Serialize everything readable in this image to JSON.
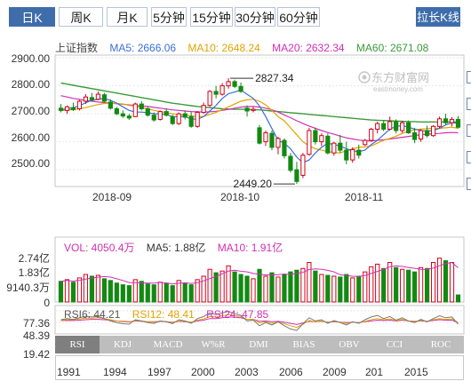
{
  "tabs": [
    {
      "label": "日K",
      "active": true
    },
    {
      "label": "周K",
      "active": false
    },
    {
      "label": "月K",
      "active": false
    },
    {
      "label": "5分钟",
      "active": false
    },
    {
      "label": "15分钟",
      "active": false
    },
    {
      "label": "30分钟",
      "active": false
    },
    {
      "label": "60分钟",
      "active": false
    }
  ],
  "long_chart_button": "拉长K线",
  "legend": {
    "index_name": "上证指数",
    "ma5": "MA5: 2666.06",
    "ma10": "MA10: 2648.24",
    "ma20": "MA20: 2632.34",
    "ma60": "MA60: 2671.08"
  },
  "colors": {
    "accent": "#3f6dab",
    "up": "#d0021b",
    "down": "#128a12",
    "ma5": "#3a6fd8",
    "ma10": "#e0a300",
    "ma20": "#d12fb4",
    "ma60": "#3a9b3a"
  },
  "price_axis": [
    "2900.00",
    "2800.00",
    "2700.00",
    "2600.00",
    "2500.00"
  ],
  "date_axis": [
    "2018-09",
    "2018-10",
    "2018-11"
  ],
  "annotations": {
    "high": "2827.34",
    "low": "2449.20"
  },
  "watermark": {
    "name": "东方财富网",
    "url": "eastmoney.com"
  },
  "volume": {
    "vol": "VOL: 4050.4万",
    "ma5": "MA5: 1.88亿",
    "ma10": "MA10: 1.91亿",
    "axis": [
      "2.74亿",
      "1.83亿",
      "9140.3万",
      "0"
    ]
  },
  "rsi": {
    "rsi6": "RSI6: 44.21",
    "rsi12": "RSI12: 48.41",
    "rsi24": "RSI24: 47.85",
    "axis": [
      "77.36",
      "48.39",
      "19.42"
    ]
  },
  "indicators": [
    {
      "label": "RSI",
      "active": true
    },
    {
      "label": "KDJ",
      "active": false
    },
    {
      "label": "MACD",
      "active": false
    },
    {
      "label": "W%R",
      "active": false
    },
    {
      "label": "DMI",
      "active": false
    },
    {
      "label": "BIAS",
      "active": false
    },
    {
      "label": "OBV",
      "active": false
    },
    {
      "label": "CCI",
      "active": false
    },
    {
      "label": "ROC",
      "active": false
    }
  ],
  "navigator_years": [
    "1991",
    "1994",
    "1997",
    "2000",
    "2003",
    "2006",
    "2009",
    "201",
    "2015"
  ],
  "chart_data": {
    "type": "candlestick",
    "title": "上证指数",
    "ylim": [
      2440,
      2910
    ],
    "x_ticks": [
      "2018-09",
      "2018-10",
      "2018-11"
    ],
    "candles": [
      {
        "o": 2720,
        "h": 2735,
        "l": 2705,
        "c": 2712
      },
      {
        "o": 2712,
        "h": 2730,
        "l": 2700,
        "c": 2725
      },
      {
        "o": 2722,
        "h": 2740,
        "l": 2710,
        "c": 2715
      },
      {
        "o": 2718,
        "h": 2750,
        "l": 2712,
        "c": 2745
      },
      {
        "o": 2745,
        "h": 2770,
        "l": 2735,
        "c": 2760
      },
      {
        "o": 2758,
        "h": 2775,
        "l": 2745,
        "c": 2750
      },
      {
        "o": 2752,
        "h": 2780,
        "l": 2748,
        "c": 2770
      },
      {
        "o": 2768,
        "h": 2775,
        "l": 2740,
        "c": 2745
      },
      {
        "o": 2742,
        "h": 2752,
        "l": 2715,
        "c": 2720
      },
      {
        "o": 2718,
        "h": 2725,
        "l": 2695,
        "c": 2700
      },
      {
        "o": 2700,
        "h": 2712,
        "l": 2685,
        "c": 2692
      },
      {
        "o": 2692,
        "h": 2700,
        "l": 2678,
        "c": 2685
      },
      {
        "o": 2690,
        "h": 2740,
        "l": 2688,
        "c": 2735
      },
      {
        "o": 2735,
        "h": 2745,
        "l": 2712,
        "c": 2718
      },
      {
        "o": 2718,
        "h": 2725,
        "l": 2690,
        "c": 2695
      },
      {
        "o": 2695,
        "h": 2705,
        "l": 2672,
        "c": 2678
      },
      {
        "o": 2680,
        "h": 2712,
        "l": 2676,
        "c": 2708
      },
      {
        "o": 2708,
        "h": 2720,
        "l": 2690,
        "c": 2695
      },
      {
        "o": 2690,
        "h": 2696,
        "l": 2660,
        "c": 2665
      },
      {
        "o": 2665,
        "h": 2705,
        "l": 2660,
        "c": 2700
      },
      {
        "o": 2700,
        "h": 2712,
        "l": 2680,
        "c": 2688
      },
      {
        "o": 2690,
        "h": 2706,
        "l": 2650,
        "c": 2655
      },
      {
        "o": 2655,
        "h": 2710,
        "l": 2650,
        "c": 2705
      },
      {
        "o": 2705,
        "h": 2740,
        "l": 2700,
        "c": 2730
      },
      {
        "o": 2730,
        "h": 2785,
        "l": 2725,
        "c": 2780
      },
      {
        "o": 2780,
        "h": 2800,
        "l": 2755,
        "c": 2770
      },
      {
        "o": 2770,
        "h": 2810,
        "l": 2765,
        "c": 2800
      },
      {
        "o": 2800,
        "h": 2827,
        "l": 2790,
        "c": 2815
      },
      {
        "o": 2815,
        "h": 2822,
        "l": 2792,
        "c": 2798
      },
      {
        "o": 2798,
        "h": 2812,
        "l": 2775,
        "c": 2780
      },
      {
        "o": 2720,
        "h": 2730,
        "l": 2690,
        "c": 2710
      },
      {
        "o": 2712,
        "h": 2725,
        "l": 2705,
        "c": 2716
      },
      {
        "o": 2650,
        "h": 2660,
        "l": 2590,
        "c": 2595
      },
      {
        "o": 2600,
        "h": 2640,
        "l": 2585,
        "c": 2632
      },
      {
        "o": 2630,
        "h": 2640,
        "l": 2570,
        "c": 2580
      },
      {
        "o": 2580,
        "h": 2618,
        "l": 2555,
        "c": 2612
      },
      {
        "o": 2605,
        "h": 2612,
        "l": 2540,
        "c": 2550
      },
      {
        "o": 2548,
        "h": 2560,
        "l": 2490,
        "c": 2498
      },
      {
        "o": 2500,
        "h": 2528,
        "l": 2449,
        "c": 2458
      },
      {
        "o": 2480,
        "h": 2560,
        "l": 2470,
        "c": 2552
      },
      {
        "o": 2555,
        "h": 2650,
        "l": 2550,
        "c": 2640
      },
      {
        "o": 2640,
        "h": 2650,
        "l": 2590,
        "c": 2600
      },
      {
        "o": 2600,
        "h": 2630,
        "l": 2585,
        "c": 2622
      },
      {
        "o": 2620,
        "h": 2630,
        "l": 2555,
        "c": 2560
      },
      {
        "o": 2560,
        "h": 2600,
        "l": 2550,
        "c": 2595
      },
      {
        "o": 2595,
        "h": 2625,
        "l": 2560,
        "c": 2570
      },
      {
        "o": 2570,
        "h": 2600,
        "l": 2520,
        "c": 2535
      },
      {
        "o": 2535,
        "h": 2580,
        "l": 2525,
        "c": 2572
      },
      {
        "o": 2570,
        "h": 2590,
        "l": 2540,
        "c": 2552
      },
      {
        "o": 2590,
        "h": 2610,
        "l": 2585,
        "c": 2605
      },
      {
        "o": 2605,
        "h": 2650,
        "l": 2600,
        "c": 2645
      },
      {
        "o": 2645,
        "h": 2672,
        "l": 2630,
        "c": 2665
      },
      {
        "o": 2665,
        "h": 2678,
        "l": 2638,
        "c": 2645
      },
      {
        "o": 2645,
        "h": 2690,
        "l": 2640,
        "c": 2672
      },
      {
        "o": 2672,
        "h": 2680,
        "l": 2630,
        "c": 2640
      },
      {
        "o": 2640,
        "h": 2675,
        "l": 2632,
        "c": 2668
      },
      {
        "o": 2668,
        "h": 2676,
        "l": 2628,
        "c": 2632
      },
      {
        "o": 2632,
        "h": 2650,
        "l": 2595,
        "c": 2608
      },
      {
        "o": 2610,
        "h": 2645,
        "l": 2600,
        "c": 2640
      },
      {
        "o": 2640,
        "h": 2658,
        "l": 2615,
        "c": 2622
      },
      {
        "o": 2622,
        "h": 2660,
        "l": 2618,
        "c": 2655
      },
      {
        "o": 2655,
        "h": 2690,
        "l": 2648,
        "c": 2682
      },
      {
        "o": 2682,
        "h": 2700,
        "l": 2660,
        "c": 2668
      },
      {
        "o": 2668,
        "h": 2688,
        "l": 2655,
        "c": 2680
      },
      {
        "o": 2680,
        "h": 2692,
        "l": 2648,
        "c": 2652
      }
    ],
    "ma5": [
      2715,
      2718,
      2722,
      2728,
      2740,
      2748,
      2752,
      2755,
      2748,
      2738,
      2725,
      2712,
      2706,
      2706,
      2704,
      2700,
      2700,
      2697,
      2690,
      2690,
      2690,
      2682,
      2680,
      2690,
      2710,
      2730,
      2755,
      2772,
      2778,
      2785,
      2770,
      2755,
      2728,
      2690,
      2647,
      2605,
      2595,
      2575,
      2545,
      2525,
      2535,
      2560,
      2580,
      2595,
      2590,
      2585,
      2575,
      2567,
      2565,
      2570,
      2590,
      2605,
      2625,
      2645,
      2655,
      2658,
      2652,
      2645,
      2640,
      2638,
      2640,
      2648,
      2660,
      2668,
      2666
    ],
    "ma10": [
      2712,
      2713,
      2715,
      2718,
      2722,
      2728,
      2733,
      2737,
      2738,
      2737,
      2735,
      2730,
      2727,
      2722,
      2718,
      2712,
      2708,
      2704,
      2700,
      2697,
      2696,
      2692,
      2690,
      2691,
      2698,
      2705,
      2715,
      2725,
      2735,
      2745,
      2750,
      2752,
      2745,
      2732,
      2712,
      2690,
      2675,
      2650,
      2625,
      2600,
      2585,
      2575,
      2570,
      2565,
      2562,
      2560,
      2568,
      2575,
      2580,
      2582,
      2585,
      2595,
      2605,
      2612,
      2620,
      2630,
      2638,
      2643,
      2645,
      2647,
      2648,
      2648,
      2650,
      2652,
      2648
    ],
    "ma20": [
      2765,
      2760,
      2755,
      2752,
      2748,
      2745,
      2742,
      2740,
      2738,
      2736,
      2734,
      2732,
      2730,
      2728,
      2726,
      2723,
      2720,
      2717,
      2714,
      2712,
      2710,
      2708,
      2707,
      2706,
      2707,
      2709,
      2712,
      2716,
      2720,
      2724,
      2726,
      2726,
      2724,
      2720,
      2714,
      2706,
      2696,
      2686,
      2675,
      2665,
      2656,
      2648,
      2640,
      2633,
      2627,
      2620,
      2614,
      2610,
      2606,
      2604,
      2603,
      2605,
      2607,
      2610,
      2613,
      2616,
      2619,
      2622,
      2625,
      2627,
      2629,
      2630,
      2632,
      2633,
      2632
    ],
    "ma60": [
      2810,
      2806,
      2802,
      2798,
      2794,
      2790,
      2786,
      2782,
      2778,
      2774,
      2770,
      2766,
      2762,
      2758,
      2754,
      2750,
      2746,
      2742,
      2738,
      2735,
      2732,
      2729,
      2726,
      2724,
      2722,
      2720,
      2718,
      2717,
      2716,
      2716,
      2716,
      2715,
      2714,
      2712,
      2710,
      2708,
      2706,
      2704,
      2702,
      2700,
      2698,
      2696,
      2694,
      2692,
      2690,
      2688,
      2686,
      2684,
      2682,
      2680,
      2678,
      2677,
      2676,
      2675,
      2674,
      2673,
      2672,
      2672,
      2671,
      2671,
      2671,
      2671,
      2671,
      2671,
      2671
    ],
    "volume": [
      1.2,
      1.3,
      1.15,
      1.4,
      1.6,
      1.5,
      1.55,
      1.35,
      1.25,
      1.1,
      1.0,
      0.95,
      1.3,
      1.2,
      1.05,
      1.0,
      1.15,
      1.1,
      0.95,
      1.25,
      1.1,
      1.0,
      1.3,
      1.5,
      1.9,
      1.7,
      1.8,
      2.1,
      1.75,
      1.6,
      1.5,
      1.35,
      1.9,
      1.5,
      1.7,
      1.45,
      1.6,
      1.75,
      1.85,
      1.95,
      2.3,
      1.8,
      1.6,
      1.55,
      1.5,
      1.45,
      1.6,
      1.4,
      1.5,
      1.75,
      2.05,
      2.2,
      1.95,
      2.3,
      2.0,
      1.9,
      1.85,
      1.75,
      2.0,
      1.95,
      2.3,
      2.55,
      2.4,
      2.3,
      0.41
    ],
    "volume_unit": "亿",
    "rsi6": [
      55,
      58,
      56,
      60,
      64,
      62,
      63,
      58,
      52,
      48,
      45,
      44,
      55,
      52,
      48,
      46,
      52,
      50,
      45,
      55,
      52,
      46,
      58,
      63,
      72,
      68,
      72,
      76,
      70,
      66,
      52,
      54,
      40,
      48,
      42,
      50,
      40,
      32,
      28,
      45,
      60,
      52,
      55,
      46,
      53,
      48,
      42,
      50,
      46,
      55,
      62,
      66,
      58,
      63,
      54,
      60,
      52,
      48,
      56,
      50,
      58,
      65,
      60,
      62,
      44
    ],
    "rsi12": [
      54,
      55,
      55,
      57,
      59,
      59,
      60,
      58,
      55,
      52,
      50,
      49,
      53,
      52,
      50,
      49,
      51,
      50,
      48,
      52,
      51,
      49,
      54,
      57,
      63,
      62,
      65,
      68,
      65,
      63,
      56,
      56,
      47,
      50,
      46,
      49,
      45,
      40,
      36,
      44,
      53,
      50,
      52,
      48,
      51,
      49,
      46,
      49,
      47,
      51,
      55,
      58,
      55,
      57,
      53,
      56,
      52,
      50,
      53,
      51,
      55,
      58,
      56,
      57,
      48
    ],
    "rsi24": [
      53,
      53,
      53,
      54,
      55,
      56,
      56,
      55,
      54,
      52,
      51,
      50,
      52,
      51,
      50,
      50,
      51,
      50,
      49,
      51,
      50,
      49,
      52,
      54,
      58,
      58,
      60,
      62,
      61,
      60,
      56,
      56,
      51,
      52,
      50,
      51,
      49,
      46,
      43,
      47,
      51,
      50,
      51,
      49,
      50,
      49,
      48,
      49,
      48,
      50,
      52,
      54,
      53,
      54,
      52,
      54,
      52,
      51,
      52,
      51,
      53,
      55,
      54,
      54,
      48
    ]
  }
}
